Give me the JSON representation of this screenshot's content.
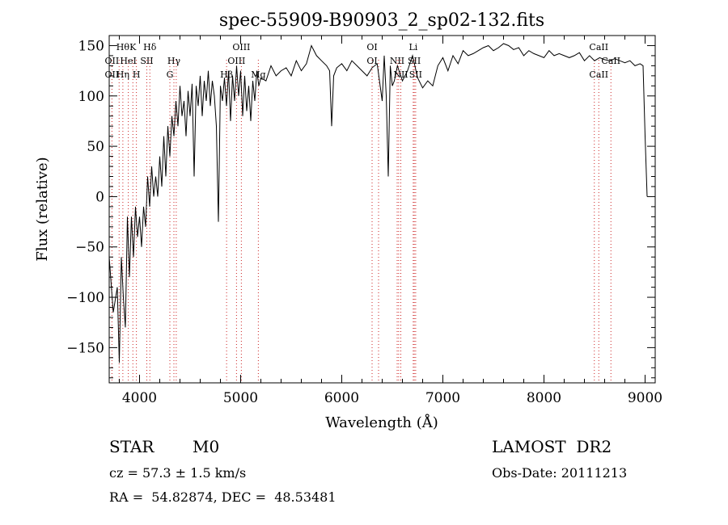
{
  "chart_data": {
    "type": "line",
    "title": "spec-55909-B90903_2_sp02-132.fits",
    "xlabel": "Wavelength (Å)",
    "ylabel": "Flux (relative)",
    "xlim": [
      3700,
      9100
    ],
    "ylim": [
      -185,
      160
    ],
    "xticks": [
      4000,
      5000,
      6000,
      7000,
      8000,
      9000
    ],
    "yticks": [
      -150,
      -100,
      -50,
      0,
      50,
      100,
      150
    ],
    "grid": false,
    "series": [
      {
        "x": [
          3700,
          3740,
          3780,
          3800,
          3820,
          3840,
          3860,
          3880,
          3900,
          3920,
          3940,
          3960,
          3980,
          4000,
          4020,
          4040,
          4060,
          4080,
          4100,
          4120,
          4140,
          4160,
          4180,
          4200,
          4220,
          4240,
          4260,
          4280,
          4300,
          4320,
          4340,
          4360,
          4380,
          4400,
          4420,
          4440,
          4460,
          4480,
          4500,
          4520,
          4540,
          4560,
          4580,
          4600,
          4620,
          4640,
          4660,
          4680,
          4700,
          4720,
          4740,
          4760,
          4780,
          4800,
          4820,
          4840,
          4860,
          4880,
          4900,
          4920,
          4940,
          4960,
          4980,
          5000,
          5020,
          5040,
          5060,
          5080,
          5100,
          5120,
          5140,
          5160,
          5180,
          5200,
          5250,
          5300,
          5350,
          5400,
          5450,
          5500,
          5550,
          5600,
          5650,
          5700,
          5750,
          5800,
          5850,
          5880,
          5900,
          5920,
          5950,
          6000,
          6050,
          6100,
          6150,
          6200,
          6250,
          6300,
          6350,
          6400,
          6420,
          6440,
          6460,
          6480,
          6500,
          6520,
          6550,
          6600,
          6650,
          6700,
          6750,
          6800,
          6850,
          6900,
          6950,
          7000,
          7050,
          7100,
          7150,
          7200,
          7250,
          7300,
          7350,
          7400,
          7450,
          7500,
          7550,
          7600,
          7650,
          7700,
          7750,
          7800,
          7850,
          7900,
          7950,
          8000,
          8050,
          8100,
          8150,
          8200,
          8250,
          8300,
          8350,
          8400,
          8450,
          8500,
          8550,
          8600,
          8650,
          8700,
          8750,
          8800,
          8850,
          8900,
          8950,
          8980,
          9000,
          9020
        ],
        "y": [
          -60,
          -115,
          -90,
          -165,
          -60,
          -100,
          -130,
          -20,
          -80,
          -20,
          -60,
          -10,
          -40,
          -20,
          -50,
          -10,
          -30,
          20,
          -10,
          30,
          0,
          20,
          0,
          40,
          10,
          60,
          20,
          70,
          40,
          80,
          60,
          95,
          70,
          110,
          80,
          95,
          60,
          105,
          80,
          112,
          20,
          110,
          90,
          120,
          80,
          115,
          95,
          125,
          90,
          115,
          100,
          70,
          -25,
          110,
          95,
          118,
          90,
          125,
          75,
          120,
          95,
          130,
          100,
          125,
          80,
          120,
          85,
          110,
          75,
          115,
          95,
          125,
          110,
          118,
          115,
          130,
          120,
          125,
          128,
          120,
          135,
          125,
          132,
          150,
          140,
          135,
          130,
          125,
          70,
          120,
          128,
          132,
          125,
          135,
          130,
          125,
          120,
          128,
          132,
          95,
          140,
          100,
          20,
          130,
          110,
          115,
          130,
          115,
          125,
          140,
          118,
          108,
          115,
          110,
          130,
          138,
          125,
          140,
          132,
          145,
          140,
          142,
          145,
          148,
          150,
          145,
          148,
          152,
          150,
          146,
          148,
          140,
          145,
          142,
          140,
          138,
          145,
          140,
          142,
          140,
          138,
          140,
          143,
          135,
          140,
          135,
          138,
          136,
          135,
          137,
          135,
          133,
          135,
          130,
          132,
          130,
          60,
          0
        ]
      }
    ],
    "line_labels": {
      "top_row": [
        "Hθ",
        "K",
        "Hδ",
        "OIII",
        "OI",
        "Li",
        "CaII"
      ],
      "second_row": [
        "OII",
        "HeI",
        "SII",
        "Hγ",
        "OIII",
        "OI",
        "NII",
        "SII",
        "CaII"
      ],
      "third_row": [
        "OII",
        "Hη",
        "H",
        "G",
        "Hβ",
        "Mg",
        "NII",
        "SII",
        "CaII"
      ]
    }
  },
  "info": {
    "object_class": "STAR",
    "subclass": "M0",
    "survey": "LAMOST  DR2",
    "cz": "cz = 57.3 ± 1.5 km/s",
    "obs_date": "Obs-Date: 20111213",
    "coords": "RA =  54.82874, DEC =  48.53481"
  },
  "colors": {
    "line_markers": "#cc2222",
    "spectrum": "#000000"
  }
}
